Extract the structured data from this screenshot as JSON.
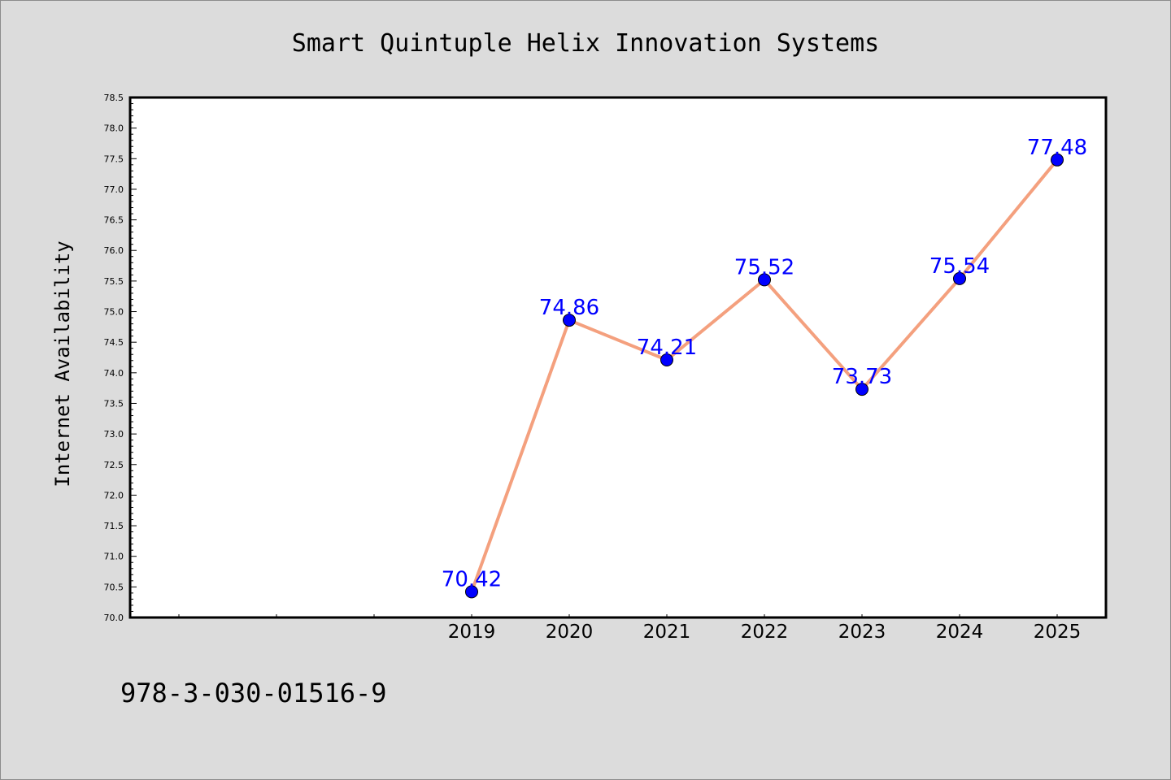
{
  "chart_data": {
    "type": "line",
    "title": "Smart Quintuple Helix Innovation Systems",
    "xlabel": "",
    "ylabel": "Internet Availability",
    "categories": [
      "2019",
      "2020",
      "2021",
      "2022",
      "2023",
      "2024",
      "2025"
    ],
    "values": [
      70.42,
      74.86,
      74.21,
      75.52,
      73.73,
      75.54,
      77.48
    ],
    "data_labels": [
      "70.42",
      "74.86",
      "74.21",
      "75.52",
      "73.73",
      "75.54",
      "77.48"
    ],
    "ylim": [
      70.0,
      78.5
    ],
    "yticks": [
      "70.0",
      "70.5",
      "71.0",
      "71.5",
      "72.0",
      "72.5",
      "73.0",
      "73.5",
      "74.0",
      "74.5",
      "75.0",
      "75.5",
      "76.0",
      "76.5",
      "77.0",
      "77.5",
      "78.0",
      "78.5"
    ],
    "grid": false,
    "colors": {
      "line": "#f4a07e",
      "marker": "#0000ff",
      "data_label": "#0000ff",
      "background": "#dcdcdc",
      "plot_background": "#ffffff"
    }
  },
  "footer": {
    "isbn": "978-3-030-01516-9"
  }
}
